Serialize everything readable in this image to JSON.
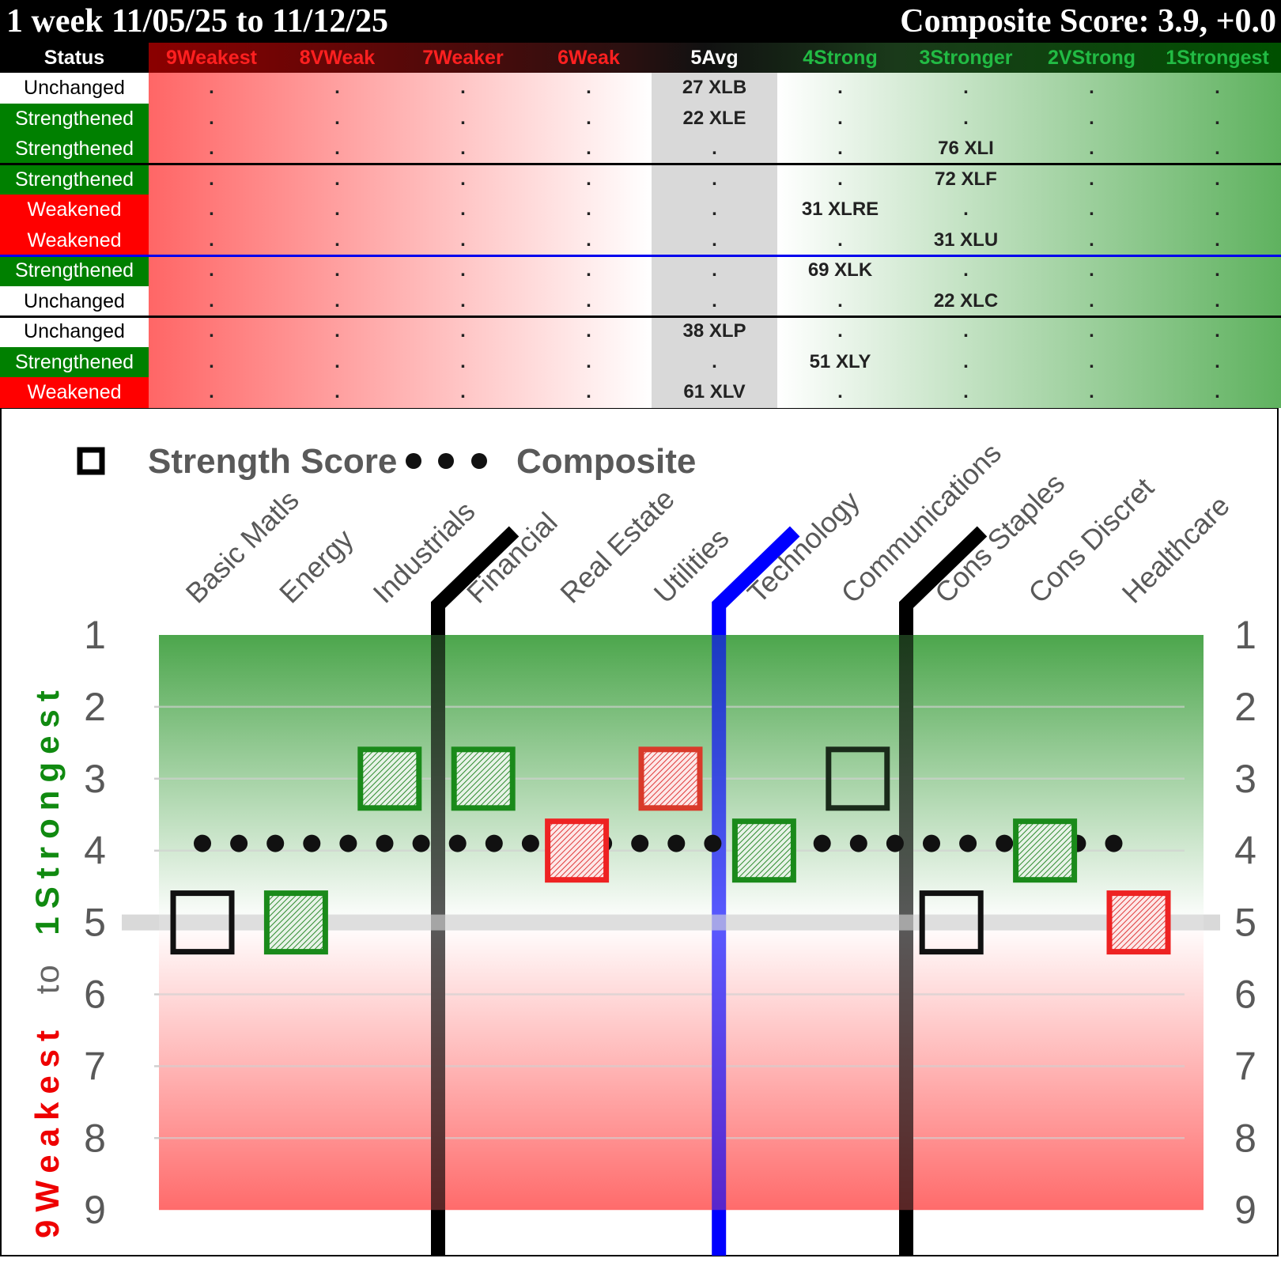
{
  "header": {
    "period": "1 week 11/05/25 to 11/12/25",
    "composite": "Composite Score: 3.9, +0.0"
  },
  "table": {
    "columns": [
      {
        "label": "Status",
        "color": "#ffffff"
      },
      {
        "label": "9Weakest",
        "color": "#ff2020"
      },
      {
        "label": "8VWeak",
        "color": "#ff2020"
      },
      {
        "label": "7Weaker",
        "color": "#ff2020"
      },
      {
        "label": "6Weak",
        "color": "#ff2020"
      },
      {
        "label": "5Avg",
        "color": "#ffffff"
      },
      {
        "label": "4Strong",
        "color": "#22bb44"
      },
      {
        "label": "3Stronger",
        "color": "#22bb44"
      },
      {
        "label": "2VStrong",
        "color": "#22bb44"
      },
      {
        "label": "1Strongest",
        "color": "#22bb44"
      }
    ],
    "rows": [
      {
        "status": "Unchanged",
        "cells": [
          ".",
          ".",
          ".",
          ".",
          "27 XLB",
          ".",
          ".",
          ".",
          "."
        ]
      },
      {
        "status": "Strengthened",
        "cells": [
          ".",
          ".",
          ".",
          ".",
          "22 XLE",
          ".",
          ".",
          ".",
          "."
        ]
      },
      {
        "status": "Strengthened",
        "cells": [
          ".",
          ".",
          ".",
          ".",
          ".",
          ".",
          "76 XLI",
          ".",
          "."
        ]
      },
      {
        "status": "Strengthened",
        "cells": [
          ".",
          ".",
          ".",
          ".",
          ".",
          ".",
          "72 XLF",
          ".",
          "."
        ]
      },
      {
        "status": "Weakened",
        "cells": [
          ".",
          ".",
          ".",
          ".",
          ".",
          "31 XLRE",
          ".",
          ".",
          "."
        ]
      },
      {
        "status": "Weakened",
        "cells": [
          ".",
          ".",
          ".",
          ".",
          ".",
          ".",
          "31 XLU",
          ".",
          "."
        ]
      },
      {
        "status": "Strengthened",
        "cells": [
          ".",
          ".",
          ".",
          ".",
          ".",
          "69 XLK",
          ".",
          ".",
          "."
        ]
      },
      {
        "status": "Unchanged",
        "cells": [
          ".",
          ".",
          ".",
          ".",
          ".",
          ".",
          "22 XLC",
          ".",
          "."
        ]
      },
      {
        "status": "Unchanged",
        "cells": [
          ".",
          ".",
          ".",
          ".",
          "38 XLP",
          ".",
          ".",
          ".",
          "."
        ]
      },
      {
        "status": "Strengthened",
        "cells": [
          ".",
          ".",
          ".",
          ".",
          ".",
          "51 XLY",
          ".",
          ".",
          "."
        ]
      },
      {
        "status": "Weakened",
        "cells": [
          ".",
          ".",
          ".",
          ".",
          "61 XLV",
          ".",
          ".",
          ".",
          "."
        ]
      }
    ],
    "separators_after_rows": [
      {
        "row": 3,
        "color": "#000000"
      },
      {
        "row": 6,
        "color": "#0000ee"
      },
      {
        "row": 8,
        "color": "#000000"
      }
    ],
    "status_colors": {
      "Unchanged": "#ffffff",
      "Strengthened": "#008000",
      "Weakened": "#ff0000"
    }
  },
  "chart_data": {
    "type": "scatter",
    "legend": {
      "strength": "Strength Score",
      "composite": "Composite",
      "placement": "top-left"
    },
    "y_axis_title": {
      "weak": "9Weakest",
      "to": "to",
      "strong": "1Strongest"
    },
    "ylim": [
      1,
      9
    ],
    "y_inverted": true,
    "y_ticks": [
      "1",
      "2",
      "3",
      "4",
      "5",
      "6",
      "7",
      "8",
      "9"
    ],
    "grid": true,
    "categories": [
      "Basic Matls",
      "Energy",
      "Industrials",
      "Financial",
      "Real Estate",
      "Utilities",
      "Technology",
      "Communications",
      "Cons Staples",
      "Cons Discret",
      "Healthcare"
    ],
    "strength": [
      5,
      5,
      3,
      3,
      4,
      3,
      4,
      3,
      5,
      4,
      5
    ],
    "status": [
      "Unchanged",
      "Strengthened",
      "Strengthened",
      "Strengthened",
      "Weakened",
      "Weakened",
      "Strengthened",
      "Unchanged",
      "Unchanged",
      "Strengthened",
      "Weakened"
    ],
    "composite": 3.9,
    "group_separators": [
      {
        "after": "Industrials",
        "color": "#000000"
      },
      {
        "after": "Utilities",
        "color": "#0000ff"
      },
      {
        "after": "Communications",
        "color": "#000000"
      }
    ],
    "colors": {
      "strong": "#1a8a1a",
      "weak": "#ee2222",
      "unchanged": "#111111",
      "average_band": "#d9d9d9"
    }
  }
}
